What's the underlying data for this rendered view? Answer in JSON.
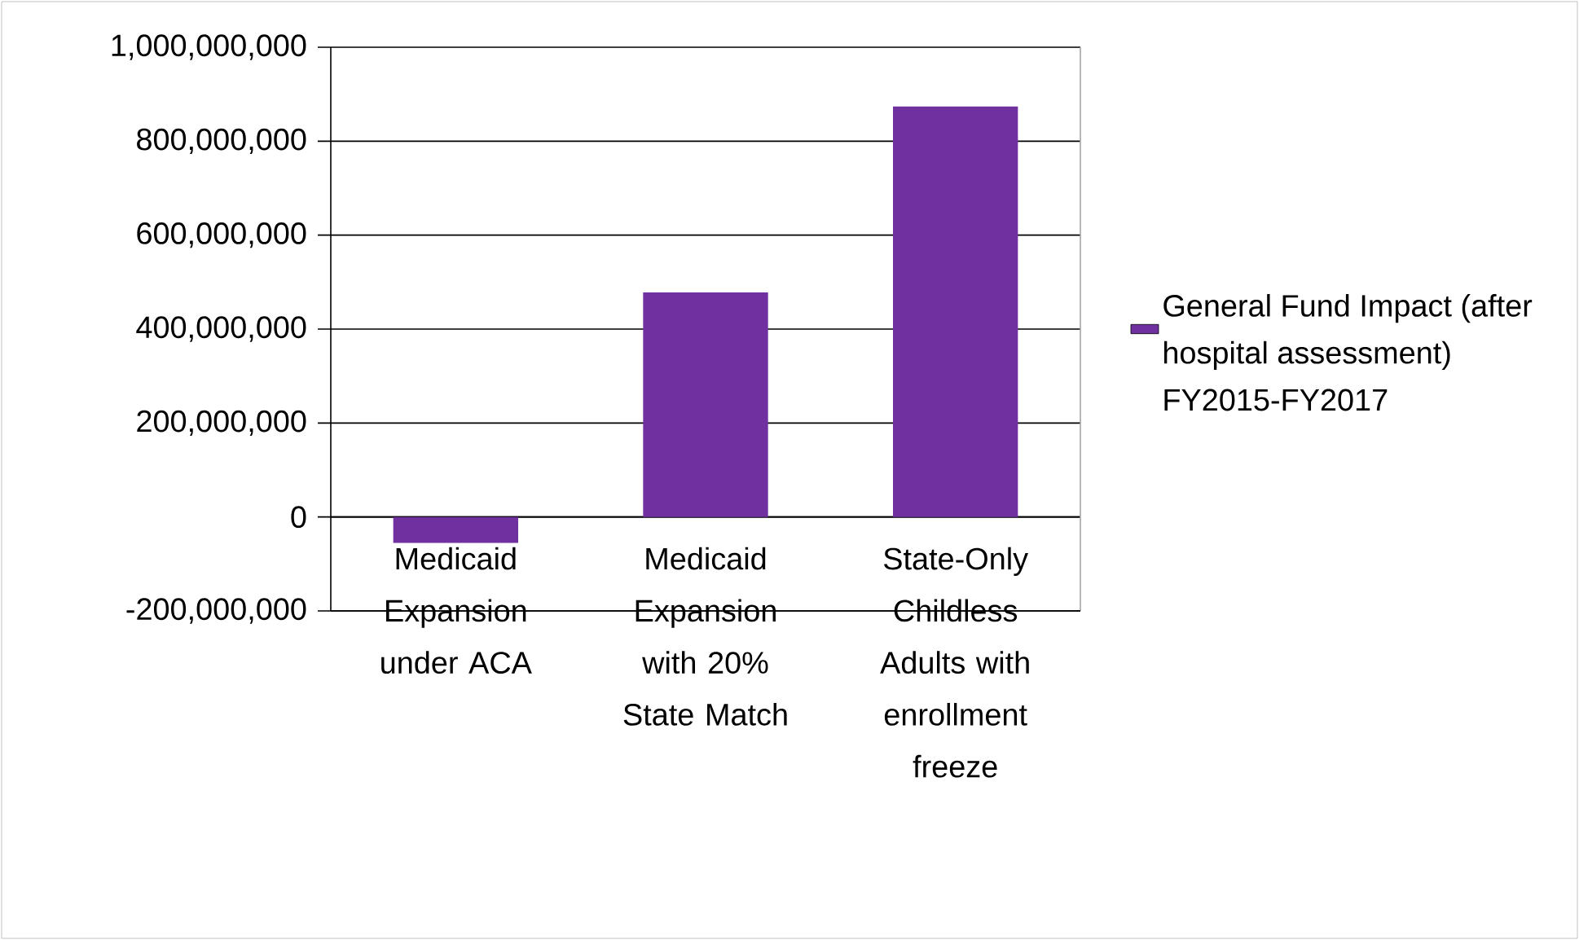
{
  "chart_data": {
    "type": "bar",
    "categories": [
      "Medicaid Expansion under ACA",
      "Medicaid Expansion with 20% State Match",
      "State-Only Childless Adults with enrollment freeze"
    ],
    "series": [
      {
        "name": "General Fund Impact (after hospital assessment) FY2015-FY2017",
        "color": "#7030a0",
        "values": [
          -55000000,
          478000000,
          874000000
        ]
      }
    ],
    "ylim": [
      -200000000,
      1000000000
    ],
    "yticks": [
      {
        "value": -200000000,
        "label": "-200,000,000"
      },
      0,
      {
        "value": 200000000,
        "label": "200,000,000"
      },
      {
        "value": 400000000,
        "label": "400,000,000"
      },
      {
        "value": 600000000,
        "label": "600,000,000"
      },
      {
        "value": 800000000,
        "label": "800,000,000"
      },
      {
        "value": 1000000000,
        "label": "1,000,000,000"
      }
    ],
    "grid": "y",
    "legend": "right"
  }
}
